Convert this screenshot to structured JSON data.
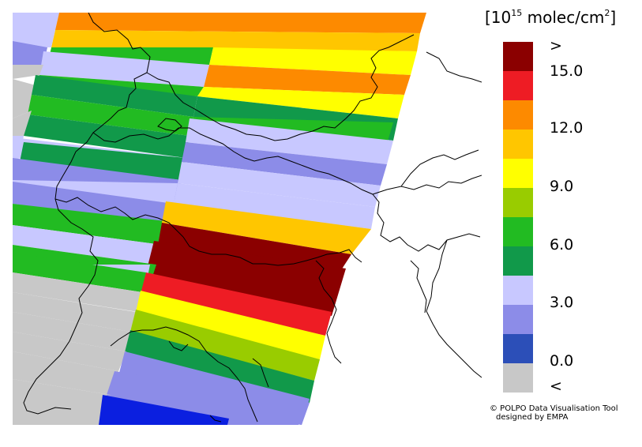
{
  "legend": {
    "unit_prefix": "[10",
    "unit_exp": "15",
    "unit_rest": " molec/cm",
    "unit_exp2": "2",
    "unit_close": "]",
    "colors": [
      "#8b0000",
      "#ee1c24",
      "#fd8a00",
      "#ffc600",
      "#ffff00",
      "#99cc00",
      "#22bb22",
      "#11994a",
      "#c8c8ff",
      "#8c8ce8",
      "#2c4fb8",
      "#c8c8c8"
    ],
    "ticks": [
      ">",
      "15.0",
      "12.0",
      "9.0",
      "6.0",
      "3.0",
      "0.0",
      "<"
    ]
  },
  "credit": {
    "line1": "© POLPO Data Visualisation Tool",
    "line2": "designed by EMPA"
  }
}
